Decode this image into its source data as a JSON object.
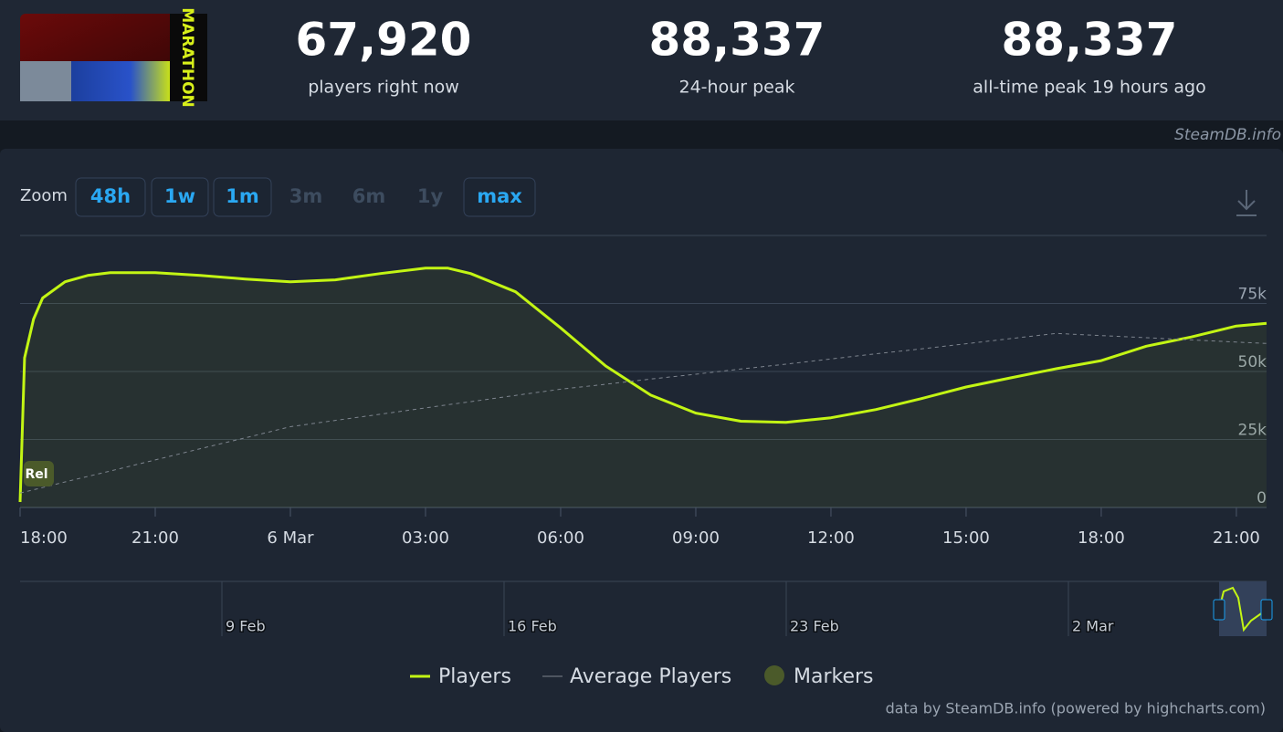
{
  "header": {
    "game_logo": "MARATHON",
    "stats": [
      {
        "value": "67,920",
        "label": "players right now"
      },
      {
        "value": "88,337",
        "label": "24-hour peak"
      },
      {
        "value": "88,337",
        "label": "all-time peak 19 hours ago"
      }
    ]
  },
  "credit": "SteamDB.info",
  "zoom": {
    "label": "Zoom",
    "buttons": [
      {
        "text": "48h",
        "enabled": true
      },
      {
        "text": "1w",
        "enabled": true
      },
      {
        "text": "1m",
        "enabled": true
      },
      {
        "text": "3m",
        "enabled": false
      },
      {
        "text": "6m",
        "enabled": false
      },
      {
        "text": "1y",
        "enabled": false
      },
      {
        "text": "max",
        "enabled": true
      }
    ]
  },
  "chart_data": {
    "type": "line",
    "x": [
      0,
      0.1,
      0.3,
      0.5,
      1,
      1.5,
      2,
      3,
      4,
      5,
      6,
      7,
      8,
      9,
      9.5,
      10,
      11,
      12,
      13,
      14,
      15,
      16,
      17,
      18,
      19,
      20,
      21,
      22,
      23,
      24,
      25,
      26,
      27,
      27.67
    ],
    "xlim": [
      0,
      27.67
    ],
    "xticks": [
      {
        "value": 0,
        "label": "18:00"
      },
      {
        "value": 3,
        "label": "21:00"
      },
      {
        "value": 6,
        "label": "6 Mar"
      },
      {
        "value": 9,
        "label": "03:00"
      },
      {
        "value": 12,
        "label": "06:00"
      },
      {
        "value": 15,
        "label": "09:00"
      },
      {
        "value": 18,
        "label": "12:00"
      },
      {
        "value": 21,
        "label": "15:00"
      },
      {
        "value": 24,
        "label": "18:00"
      },
      {
        "value": 27,
        "label": "21:00"
      }
    ],
    "ylim": [
      0,
      100000
    ],
    "yticks": [
      0,
      {
        "value": 25000,
        "label": "25k"
      },
      {
        "value": 50000,
        "label": "50k"
      },
      {
        "value": 75000,
        "label": "75k"
      }
    ],
    "grid": true,
    "series": [
      {
        "name": "Players",
        "color": "#c3f514",
        "values": [
          2000,
          55000,
          69300,
          77000,
          83000,
          85300,
          86300,
          86300,
          85300,
          84000,
          83000,
          83700,
          86000,
          88000,
          88000,
          86000,
          79300,
          66000,
          52000,
          41300,
          34700,
          31700,
          31300,
          33000,
          36000,
          40000,
          44300,
          47700,
          51000,
          54000,
          59300,
          62700,
          66700,
          67700
        ]
      },
      {
        "name": "Average Players",
        "color": "#7d848e",
        "dashed": true,
        "values": [
          5300,
          5700,
          6500,
          7300,
          9400,
          11400,
          13400,
          17500,
          21600,
          25600,
          29700,
          32000,
          34300,
          36600,
          37800,
          38900,
          41200,
          43500,
          45300,
          47200,
          49000,
          50900,
          52700,
          54600,
          56500,
          58300,
          60200,
          62100,
          64000,
          63200,
          62400,
          61600,
          60800,
          60300
        ]
      }
    ],
    "markers": {
      "name": "Markers",
      "color": "#4b5a2a",
      "labels": [
        "Rel"
      ]
    }
  },
  "navigator": {
    "labels": [
      "9 Feb",
      "16 Feb",
      "23 Feb",
      "2 Mar"
    ]
  },
  "footer": "data by SteamDB.info (powered by highcharts.com)"
}
